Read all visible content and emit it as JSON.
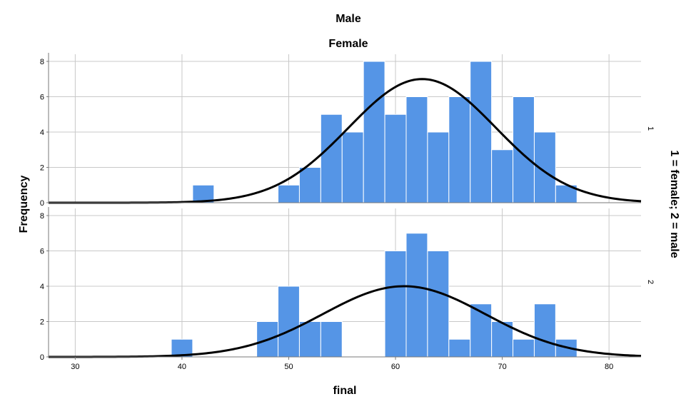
{
  "chart_data": {
    "type": "histogram",
    "title_top": "Male",
    "title_sub": "Female",
    "xlabel": "final",
    "ylabel": "Frequency",
    "facet_label": "1 = female; 2 = male",
    "xlim": [
      27.5,
      83
    ],
    "ylim": [
      0,
      8
    ],
    "x_ticks": [
      30,
      40,
      50,
      60,
      70,
      80
    ],
    "y_ticks": [
      0,
      2,
      4,
      6,
      8
    ],
    "bin_width": 2,
    "panels": [
      {
        "facet_value": "1",
        "bins": [
          {
            "start": 41,
            "count": 1
          },
          {
            "start": 49,
            "count": 1
          },
          {
            "start": 51,
            "count": 2
          },
          {
            "start": 53,
            "count": 5
          },
          {
            "start": 55,
            "count": 4
          },
          {
            "start": 57,
            "count": 8
          },
          {
            "start": 59,
            "count": 5
          },
          {
            "start": 61,
            "count": 6
          },
          {
            "start": 63,
            "count": 4
          },
          {
            "start": 65,
            "count": 6
          },
          {
            "start": 67,
            "count": 8
          },
          {
            "start": 69,
            "count": 3
          },
          {
            "start": 71,
            "count": 6
          },
          {
            "start": 73,
            "count": 4
          },
          {
            "start": 75,
            "count": 1
          }
        ],
        "normal_curve": {
          "mean": 62.5,
          "sd": 6.9,
          "peak": 7.0
        }
      },
      {
        "facet_value": "2",
        "bins": [
          {
            "start": 39,
            "count": 1
          },
          {
            "start": 47,
            "count": 2
          },
          {
            "start": 49,
            "count": 4
          },
          {
            "start": 51,
            "count": 2
          },
          {
            "start": 53,
            "count": 2
          },
          {
            "start": 59,
            "count": 6
          },
          {
            "start": 61,
            "count": 7
          },
          {
            "start": 63,
            "count": 6
          },
          {
            "start": 65,
            "count": 1
          },
          {
            "start": 67,
            "count": 3
          },
          {
            "start": 69,
            "count": 2
          },
          {
            "start": 71,
            "count": 1
          },
          {
            "start": 73,
            "count": 3
          },
          {
            "start": 75,
            "count": 1
          }
        ],
        "normal_curve": {
          "mean": 60.8,
          "sd": 7.6,
          "peak": 4.0
        }
      }
    ]
  },
  "colors": {
    "bar": "#5595e6",
    "curve": "#000000",
    "grid": "#c8c8c8"
  }
}
